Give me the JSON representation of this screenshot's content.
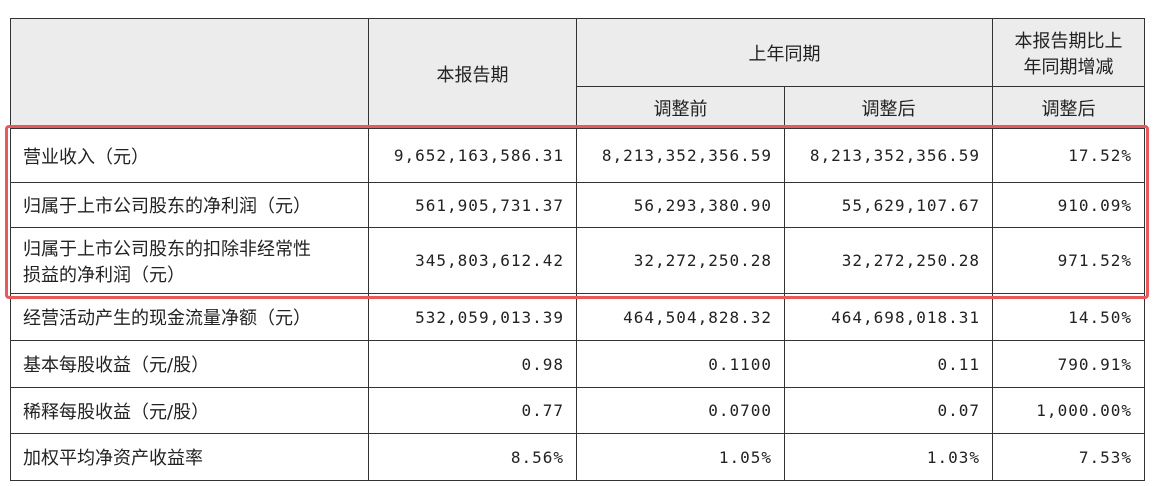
{
  "table": {
    "header_top": [
      "本报告期",
      "上年同期",
      "本报告期比上年同期增减"
    ],
    "header_sub": [
      "调整前",
      "调整后",
      "调整后"
    ],
    "rows": [
      [
        "营业收入（元）",
        "9,652,163,586.31",
        "8,213,352,356.59",
        "8,213,352,356.59",
        "17.52%"
      ],
      [
        "归属于上市公司股东的净利润（元）",
        "561,905,731.37",
        "56,293,380.90",
        "55,629,107.67",
        "910.09%"
      ],
      [
        "归属于上市公司股东的扣除非经常性损益的净利润（元）",
        "345,803,612.42",
        "32,272,250.28",
        "32,272,250.28",
        "971.52%"
      ],
      [
        "经营活动产生的现金流量净额（元）",
        "532,059,013.39",
        "464,504,828.32",
        "464,698,018.31",
        "14.50%"
      ],
      [
        "基本每股收益（元/股）",
        "0.98",
        "0.1100",
        "0.11",
        "790.91%"
      ],
      [
        "稀释每股收益（元/股）",
        "0.77",
        "0.0700",
        "0.07",
        "1,000.00%"
      ],
      [
        "加权平均净资产收益率",
        "8.56%",
        "1.05%",
        "1.03%",
        "7.53%"
      ]
    ]
  }
}
